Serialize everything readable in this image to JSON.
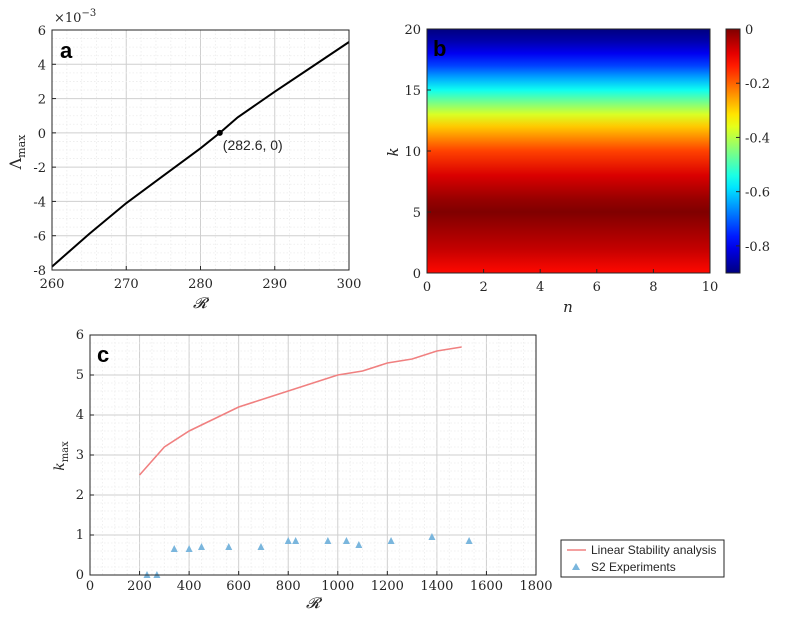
{
  "chart_data": [
    {
      "panel": "a",
      "type": "line",
      "xlabel": "𝓡",
      "ylabel": "Λ",
      "ylabel_sub": "max",
      "y_multiplier": "×10",
      "y_multiplier_exp": "−3",
      "xlim": [
        260,
        300
      ],
      "ylim": [
        -8,
        6
      ],
      "xticks": [
        "260",
        "270",
        "280",
        "290",
        "300"
      ],
      "yticks": [
        "6",
        "4",
        "2",
        "0",
        "-2",
        "-4",
        "-6",
        "-8"
      ],
      "grid": true,
      "x": [
        260,
        265,
        270,
        275,
        280,
        282.6,
        285,
        290,
        295,
        300
      ],
      "y": [
        -7.8,
        -5.9,
        -4.1,
        -2.5,
        -0.9,
        0.0,
        0.9,
        2.4,
        3.85,
        5.3
      ],
      "line_color": "#000000",
      "annotation": {
        "x": 282.6,
        "y": 0,
        "text": "(282.6, 0)"
      }
    },
    {
      "panel": "b",
      "type": "heatmap",
      "xlabel": "n",
      "ylabel": "k",
      "xlim": [
        0,
        10
      ],
      "ylim": [
        0,
        20
      ],
      "xticks": [
        "0",
        "2",
        "4",
        "6",
        "8",
        "10"
      ],
      "yticks": [
        "20",
        "15",
        "10",
        "5",
        "0"
      ],
      "colorbar_ticks": [
        "0",
        "-0.2",
        "-0.4",
        "-0.6",
        "-0.8"
      ],
      "clim": [
        -0.9,
        0
      ],
      "colormap": "jet",
      "profile_k": [
        0,
        2,
        4,
        5,
        6,
        8,
        10,
        12,
        13,
        14,
        15,
        16,
        17,
        18,
        19,
        20
      ],
      "profile_value": [
        -0.12,
        -0.06,
        -0.02,
        0.0,
        -0.02,
        -0.08,
        -0.17,
        -0.29,
        -0.37,
        -0.46,
        -0.55,
        -0.64,
        -0.73,
        -0.8,
        -0.86,
        -0.9
      ]
    },
    {
      "panel": "c",
      "type": "line",
      "xlabel": "𝓡",
      "ylabel": "k",
      "ylabel_sub": "max",
      "xlim": [
        0,
        1800
      ],
      "ylim": [
        0,
        6
      ],
      "xticks": [
        "0",
        "200",
        "400",
        "600",
        "800",
        "1000",
        "1200",
        "1400",
        "1600",
        "1800"
      ],
      "yticks": [
        "6",
        "5",
        "4",
        "3",
        "2",
        "1",
        "0"
      ],
      "grid": true,
      "legend_position": "bottom-right",
      "series": [
        {
          "name": "Linear Stability analysis",
          "style": "line",
          "color": "#f08080",
          "x": [
            200,
            300,
            400,
            500,
            600,
            700,
            800,
            900,
            1000,
            1100,
            1200,
            1300,
            1400,
            1500
          ],
          "y": [
            2.5,
            3.2,
            3.6,
            3.9,
            4.2,
            4.4,
            4.6,
            4.8,
            5.0,
            5.1,
            5.3,
            5.4,
            5.6,
            5.7
          ]
        },
        {
          "name": "S2 Experiments",
          "style": "marker",
          "color": "#7ab6dd",
          "x": [
            230,
            270,
            340,
            400,
            450,
            560,
            690,
            800,
            830,
            960,
            1035,
            1085,
            1215,
            1380,
            1530
          ],
          "y": [
            0.0,
            0.0,
            0.65,
            0.65,
            0.7,
            0.7,
            0.7,
            0.85,
            0.85,
            0.85,
            0.85,
            0.75,
            0.85,
            0.95,
            0.85
          ]
        }
      ]
    }
  ]
}
